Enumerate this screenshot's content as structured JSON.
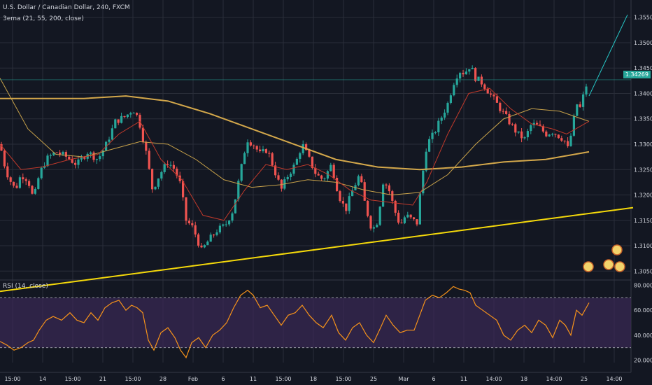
{
  "title": "U.S. Dollar / Canadian Dollar, 240, FXCM",
  "indicators": {
    "ema": "3ema (21, 55, 200, close)",
    "rsi": "RSI (14, close)"
  },
  "last_price_label": "1.34269",
  "colors": {
    "background": "#131722",
    "grid": "#2a2e39",
    "up": "#26a69a",
    "down": "#ef5350",
    "ema21": "#c0392b",
    "ema55": "#c8a24a",
    "ema200": "#d4a84b",
    "trendline": "#f5d90a",
    "projection": "#26c6c6",
    "rsi_line": "#f7931a",
    "rsi_band": "#3b2a55"
  },
  "chart_data": [
    {
      "type": "candlestick",
      "name": "price",
      "ylim": [
        1.3038,
        1.3573
      ],
      "y_ticks": [
        "1.35500",
        "1.35000",
        "1.34500",
        "1.34000",
        "1.33500",
        "1.33000",
        "1.32500",
        "1.32000",
        "1.31500",
        "1.31000",
        "1.30500"
      ],
      "x_labels": [
        "15:00",
        "14",
        "15:00",
        "21",
        "15:00",
        "28",
        "Feb",
        "6",
        "11",
        "15:00",
        "18",
        "15:00",
        "25",
        "Mar",
        "6",
        "11",
        "14:00",
        "18",
        "14:00",
        "25",
        "14:00"
      ],
      "close_path": [
        [
          0,
          1.33
        ],
        [
          8,
          1.325
        ],
        [
          14,
          1.323
        ],
        [
          22,
          1.321
        ],
        [
          30,
          1.324
        ],
        [
          40,
          1.323
        ],
        [
          48,
          1.319
        ],
        [
          56,
          1.324
        ],
        [
          66,
          1.327
        ],
        [
          80,
          1.3285
        ],
        [
          95,
          1.3275
        ],
        [
          110,
          1.326
        ],
        [
          125,
          1.3285
        ],
        [
          140,
          1.327
        ],
        [
          152,
          1.33
        ],
        [
          165,
          1.3345
        ],
        [
          180,
          1.3355
        ],
        [
          190,
          1.337
        ],
        [
          198,
          1.335
        ],
        [
          208,
          1.329
        ],
        [
          218,
          1.321
        ],
        [
          228,
          1.324
        ],
        [
          240,
          1.3265
        ],
        [
          250,
          1.325
        ],
        [
          258,
          1.322
        ],
        [
          266,
          1.315
        ],
        [
          276,
          1.3135
        ],
        [
          288,
          1.309
        ],
        [
          298,
          1.311
        ],
        [
          310,
          1.313
        ],
        [
          322,
          1.314
        ],
        [
          333,
          1.317
        ],
        [
          343,
          1.324
        ],
        [
          353,
          1.331
        ],
        [
          362,
          1.33
        ],
        [
          372,
          1.328
        ],
        [
          382,
          1.329
        ],
        [
          392,
          1.325
        ],
        [
          402,
          1.321
        ],
        [
          412,
          1.324
        ],
        [
          422,
          1.326
        ],
        [
          432,
          1.33
        ],
        [
          442,
          1.327
        ],
        [
          452,
          1.324
        ],
        [
          462,
          1.323
        ],
        [
          474,
          1.326
        ],
        [
          484,
          1.32
        ],
        [
          494,
          1.317
        ],
        [
          504,
          1.321
        ],
        [
          514,
          1.324
        ],
        [
          522,
          1.318
        ],
        [
          532,
          1.313
        ],
        [
          540,
          1.315
        ],
        [
          548,
          1.323
        ],
        [
          556,
          1.321
        ],
        [
          564,
          1.317
        ],
        [
          572,
          1.314
        ],
        [
          580,
          1.316
        ],
        [
          590,
          1.315
        ],
        [
          596,
          1.3145
        ],
        [
          602,
          1.322
        ],
        [
          610,
          1.33
        ],
        [
          620,
          1.332
        ],
        [
          630,
          1.335
        ],
        [
          640,
          1.338
        ],
        [
          648,
          1.342
        ],
        [
          656,
          1.3445
        ],
        [
          664,
          1.344
        ],
        [
          672,
          1.3455
        ],
        [
          680,
          1.343
        ],
        [
          690,
          1.342
        ],
        [
          700,
          1.34
        ],
        [
          710,
          1.338
        ],
        [
          720,
          1.336
        ],
        [
          730,
          1.334
        ],
        [
          740,
          1.332
        ],
        [
          750,
          1.331
        ],
        [
          760,
          1.334
        ],
        [
          770,
          1.3335
        ],
        [
          780,
          1.332
        ],
        [
          790,
          1.3325
        ],
        [
          800,
          1.3315
        ],
        [
          806,
          1.331
        ],
        [
          812,
          1.329
        ],
        [
          818,
          1.333
        ],
        [
          824,
          1.338
        ],
        [
          830,
          1.337
        ],
        [
          836,
          1.341
        ],
        [
          842,
          1.3427
        ]
      ],
      "ema21": [
        [
          0,
          1.33
        ],
        [
          30,
          1.325
        ],
        [
          60,
          1.3255
        ],
        [
          100,
          1.327
        ],
        [
          140,
          1.328
        ],
        [
          170,
          1.332
        ],
        [
          200,
          1.3345
        ],
        [
          230,
          1.327
        ],
        [
          260,
          1.323
        ],
        [
          290,
          1.316
        ],
        [
          320,
          1.315
        ],
        [
          350,
          1.321
        ],
        [
          380,
          1.326
        ],
        [
          410,
          1.325
        ],
        [
          440,
          1.326
        ],
        [
          470,
          1.324
        ],
        [
          500,
          1.321
        ],
        [
          530,
          1.319
        ],
        [
          560,
          1.3185
        ],
        [
          590,
          1.318
        ],
        [
          610,
          1.3225
        ],
        [
          640,
          1.332
        ],
        [
          670,
          1.34
        ],
        [
          700,
          1.341
        ],
        [
          730,
          1.337
        ],
        [
          760,
          1.334
        ],
        [
          790,
          1.333
        ],
        [
          810,
          1.332
        ],
        [
          842,
          1.3345
        ]
      ],
      "ema55": [
        [
          0,
          1.343
        ],
        [
          40,
          1.333
        ],
        [
          80,
          1.328
        ],
        [
          120,
          1.3275
        ],
        [
          160,
          1.329
        ],
        [
          200,
          1.3305
        ],
        [
          240,
          1.33
        ],
        [
          280,
          1.327
        ],
        [
          320,
          1.323
        ],
        [
          360,
          1.3215
        ],
        [
          400,
          1.322
        ],
        [
          440,
          1.323
        ],
        [
          480,
          1.3225
        ],
        [
          520,
          1.321
        ],
        [
          560,
          1.32
        ],
        [
          600,
          1.3205
        ],
        [
          640,
          1.324
        ],
        [
          680,
          1.33
        ],
        [
          720,
          1.335
        ],
        [
          760,
          1.337
        ],
        [
          800,
          1.3365
        ],
        [
          842,
          1.3345
        ]
      ],
      "ema200": [
        [
          0,
          1.339
        ],
        [
          60,
          1.339
        ],
        [
          120,
          1.339
        ],
        [
          180,
          1.3395
        ],
        [
          240,
          1.3385
        ],
        [
          300,
          1.336
        ],
        [
          360,
          1.333
        ],
        [
          420,
          1.33
        ],
        [
          480,
          1.327
        ],
        [
          540,
          1.3255
        ],
        [
          600,
          1.325
        ],
        [
          660,
          1.3255
        ],
        [
          720,
          1.3265
        ],
        [
          780,
          1.327
        ],
        [
          842,
          1.3285
        ]
      ],
      "trendline": [
        [
          0,
          1.301
        ],
        [
          905,
          1.3175
        ]
      ],
      "projection": [
        [
          842,
          1.3395
        ],
        [
          897,
          1.3555
        ]
      ]
    },
    {
      "type": "line",
      "name": "RSI",
      "ylim": [
        18.0,
        82.0
      ],
      "y_ticks": [
        "80.0000",
        "60.0000",
        "40.0000",
        "20.0000"
      ],
      "bands": [
        30,
        70
      ],
      "values": [
        [
          0,
          35
        ],
        [
          10,
          32
        ],
        [
          20,
          28
        ],
        [
          30,
          30
        ],
        [
          40,
          34
        ],
        [
          48,
          36
        ],
        [
          56,
          44
        ],
        [
          66,
          52
        ],
        [
          76,
          55
        ],
        [
          88,
          52
        ],
        [
          100,
          58
        ],
        [
          110,
          52
        ],
        [
          120,
          50
        ],
        [
          130,
          58
        ],
        [
          140,
          52
        ],
        [
          150,
          62
        ],
        [
          160,
          66
        ],
        [
          170,
          68
        ],
        [
          180,
          60
        ],
        [
          188,
          64
        ],
        [
          196,
          62
        ],
        [
          204,
          58
        ],
        [
          212,
          36
        ],
        [
          220,
          28
        ],
        [
          230,
          42
        ],
        [
          240,
          46
        ],
        [
          250,
          38
        ],
        [
          258,
          28
        ],
        [
          266,
          22
        ],
        [
          274,
          34
        ],
        [
          284,
          38
        ],
        [
          294,
          30
        ],
        [
          304,
          40
        ],
        [
          314,
          44
        ],
        [
          324,
          50
        ],
        [
          334,
          62
        ],
        [
          344,
          72
        ],
        [
          354,
          76
        ],
        [
          362,
          72
        ],
        [
          372,
          62
        ],
        [
          382,
          64
        ],
        [
          392,
          56
        ],
        [
          402,
          48
        ],
        [
          412,
          56
        ],
        [
          422,
          58
        ],
        [
          432,
          64
        ],
        [
          442,
          56
        ],
        [
          452,
          50
        ],
        [
          462,
          46
        ],
        [
          474,
          56
        ],
        [
          484,
          42
        ],
        [
          494,
          36
        ],
        [
          504,
          46
        ],
        [
          514,
          50
        ],
        [
          524,
          40
        ],
        [
          534,
          34
        ],
        [
          544,
          46
        ],
        [
          552,
          56
        ],
        [
          562,
          48
        ],
        [
          572,
          42
        ],
        [
          582,
          44
        ],
        [
          592,
          44
        ],
        [
          600,
          56
        ],
        [
          608,
          68
        ],
        [
          618,
          72
        ],
        [
          628,
          70
        ],
        [
          638,
          74
        ],
        [
          648,
          79
        ],
        [
          656,
          77
        ],
        [
          664,
          76
        ],
        [
          672,
          74
        ],
        [
          680,
          64
        ],
        [
          690,
          60
        ],
        [
          700,
          56
        ],
        [
          710,
          52
        ],
        [
          720,
          40
        ],
        [
          730,
          36
        ],
        [
          740,
          44
        ],
        [
          750,
          48
        ],
        [
          760,
          42
        ],
        [
          770,
          52
        ],
        [
          780,
          48
        ],
        [
          790,
          38
        ],
        [
          800,
          52
        ],
        [
          808,
          48
        ],
        [
          816,
          40
        ],
        [
          824,
          60
        ],
        [
          832,
          56
        ],
        [
          842,
          66
        ]
      ]
    }
  ]
}
